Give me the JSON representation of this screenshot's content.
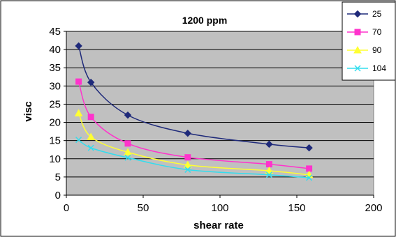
{
  "chart_data": {
    "type": "line",
    "title": "1200 ppm",
    "xlabel": "shear rate",
    "ylabel": "visc",
    "xlim": [
      0,
      200
    ],
    "ylim": [
      0,
      45
    ],
    "xticks": [
      0,
      50,
      100,
      150,
      200
    ],
    "yticks": [
      0,
      5,
      10,
      15,
      20,
      25,
      30,
      35,
      40,
      45
    ],
    "grid": "horizontal",
    "plot_background": "#c0c0c0",
    "legend_position": "top-right",
    "series": [
      {
        "name": "25",
        "color": "#1f2a7a",
        "marker": "diamond",
        "points": [
          [
            8,
            41
          ],
          [
            16,
            31
          ],
          [
            40,
            22
          ],
          [
            79,
            17
          ],
          [
            132,
            14
          ],
          [
            158,
            13
          ]
        ]
      },
      {
        "name": "70",
        "color": "#ff33cc",
        "marker": "square",
        "points": [
          [
            8,
            31.2
          ],
          [
            16,
            21.5
          ],
          [
            40,
            14.2
          ],
          [
            79,
            10.4
          ],
          [
            132,
            8.5
          ],
          [
            158,
            7.3
          ]
        ]
      },
      {
        "name": "90",
        "color": "#ffff33",
        "marker": "triangle",
        "points": [
          [
            8,
            22.5
          ],
          [
            16,
            16
          ],
          [
            40,
            11.8
          ],
          [
            79,
            8.3
          ],
          [
            132,
            6.7
          ],
          [
            158,
            5.6
          ]
        ]
      },
      {
        "name": "104",
        "color": "#33ddee",
        "marker": "x",
        "points": [
          [
            8,
            15.2
          ],
          [
            16,
            13
          ],
          [
            40,
            10.3
          ],
          [
            79,
            7
          ],
          [
            132,
            5.6
          ],
          [
            158,
            4.8
          ]
        ]
      }
    ]
  }
}
